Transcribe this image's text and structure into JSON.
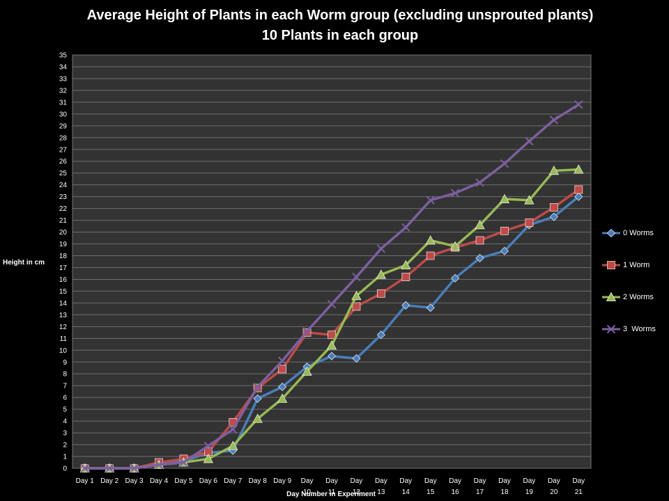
{
  "chart_data": {
    "type": "line",
    "title": "Average Height of Plants in each Worm group (excluding unsprouted plants)",
    "subtitle": "10 Plants in each group",
    "xlabel": "Day Number in Experiment",
    "ylabel": "Height in cm",
    "ylim": [
      0,
      35
    ],
    "ytick_step": 1,
    "grid": true,
    "legend": "right",
    "categories": [
      "Day 1",
      "Day 2",
      "Day 3",
      "Day 4",
      "Day 5",
      "Day 6",
      "Day 7",
      "Day 8",
      "Day 9",
      "Day 10",
      "Day 11",
      "Day 12",
      "Day 13",
      "Day 14",
      "Day 15",
      "Day 16",
      "Day 17",
      "Day 18",
      "Day 19",
      "Day 20",
      "Day 21"
    ],
    "series": [
      {
        "name": "0 Worms",
        "color": "#4a7ebb",
        "marker": "diamond",
        "values": [
          0,
          0,
          0,
          0.3,
          0.6,
          1.3,
          1.5,
          5.9,
          6.9,
          8.6,
          9.5,
          9.3,
          11.3,
          13.8,
          13.6,
          16.1,
          17.8,
          18.4,
          20.6,
          21.3,
          23.0
        ]
      },
      {
        "name": "1 Worm",
        "color": "#be4b48",
        "marker": "square",
        "values": [
          0,
          0,
          0,
          0.5,
          0.8,
          1.4,
          3.9,
          6.8,
          8.4,
          11.5,
          11.3,
          13.7,
          14.8,
          16.2,
          18.0,
          18.7,
          19.3,
          20.1,
          20.8,
          22.1,
          23.6
        ]
      },
      {
        "name": "2 Worms",
        "color": "#98b954",
        "marker": "triangle",
        "values": [
          0,
          0,
          0,
          0.3,
          0.5,
          0.8,
          1.9,
          4.2,
          5.9,
          8.2,
          10.4,
          14.6,
          16.4,
          17.2,
          19.3,
          18.8,
          20.6,
          22.8,
          22.7,
          25.2,
          25.3
        ]
      },
      {
        "name": "3  Worms",
        "color": "#7d60a0",
        "marker": "x",
        "values": [
          0,
          0,
          0,
          0.3,
          0.5,
          1.9,
          3.3,
          6.9,
          9.1,
          11.6,
          13.9,
          16.2,
          18.6,
          20.4,
          22.7,
          23.3,
          24.2,
          25.8,
          27.7,
          29.5,
          30.8
        ]
      }
    ]
  }
}
